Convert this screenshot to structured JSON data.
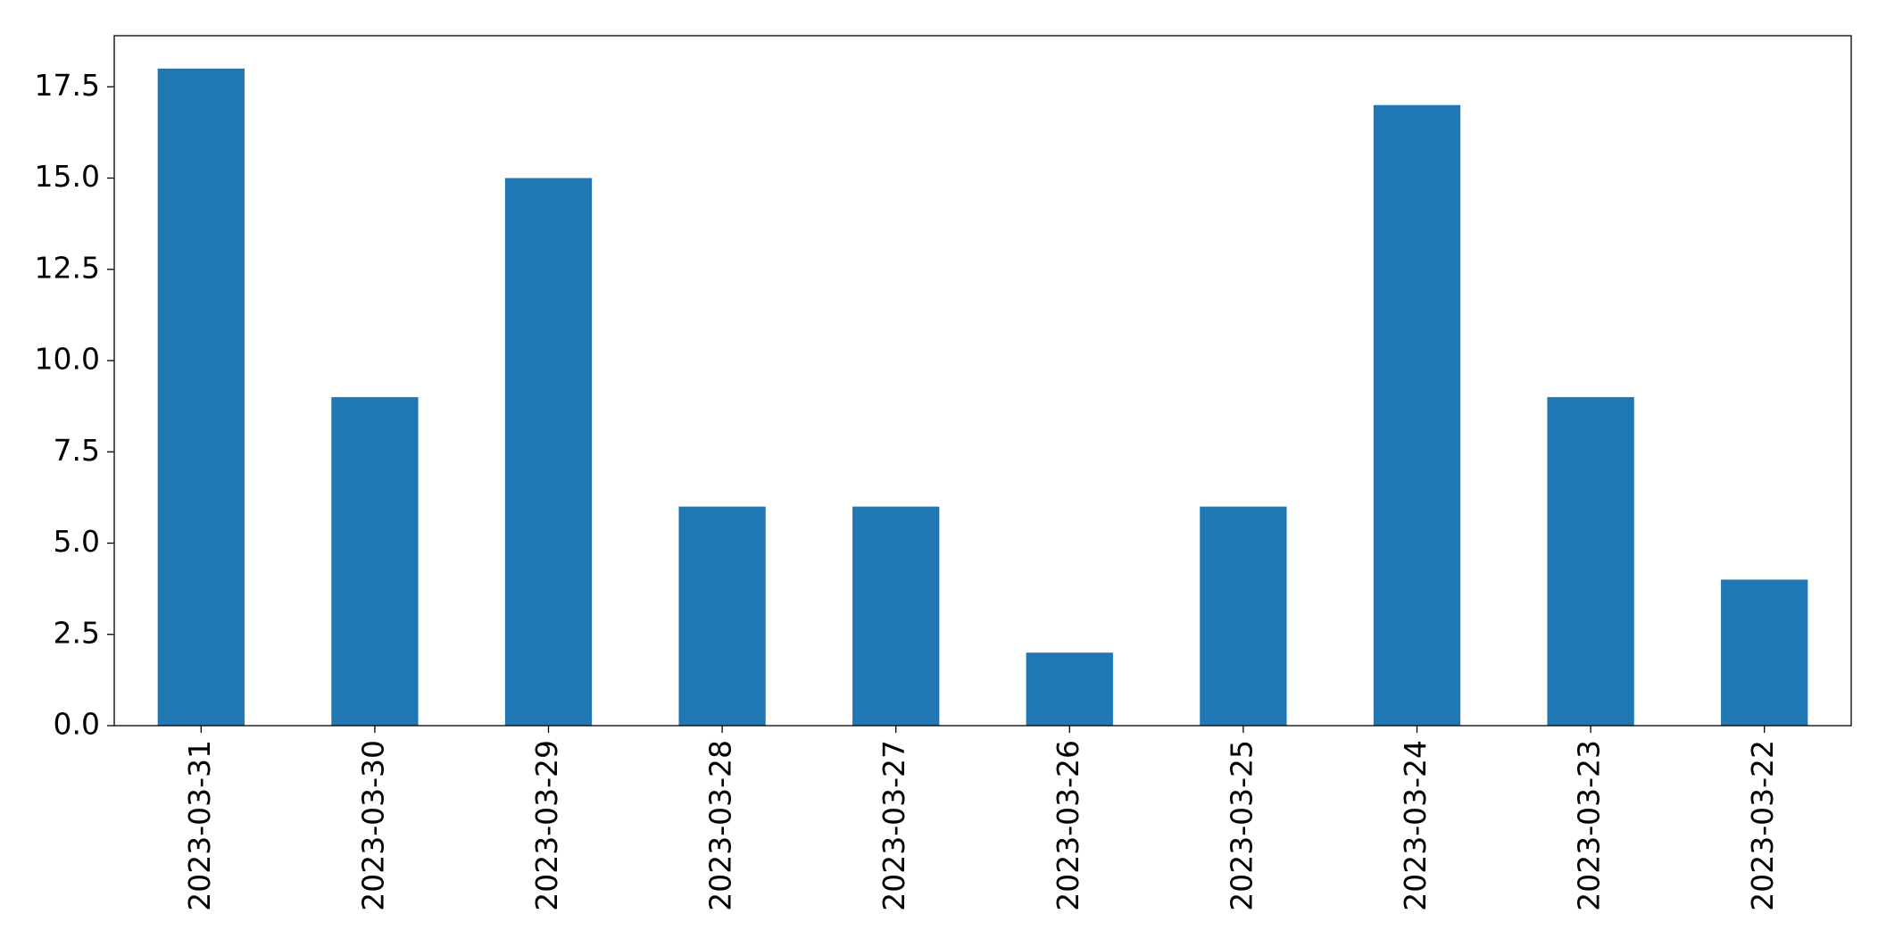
{
  "chart_data": {
    "type": "bar",
    "categories": [
      "2023-03-31",
      "2023-03-30",
      "2023-03-29",
      "2023-03-28",
      "2023-03-27",
      "2023-03-26",
      "2023-03-25",
      "2023-03-24",
      "2023-03-23",
      "2023-03-22"
    ],
    "values": [
      18,
      9,
      15,
      6,
      6,
      2,
      6,
      17,
      9,
      4
    ],
    "color": "#1f77b4",
    "ylim": [
      0,
      18.9
    ],
    "yticks": [
      {
        "value": 0,
        "label": "0.0"
      },
      2.5,
      {
        "value": 5,
        "label": "5.0"
      },
      7.5,
      {
        "value": 10,
        "label": "10.0"
      },
      12.5,
      {
        "value": 15,
        "label": "15.0"
      },
      17.5
    ],
    "grid": false
  }
}
